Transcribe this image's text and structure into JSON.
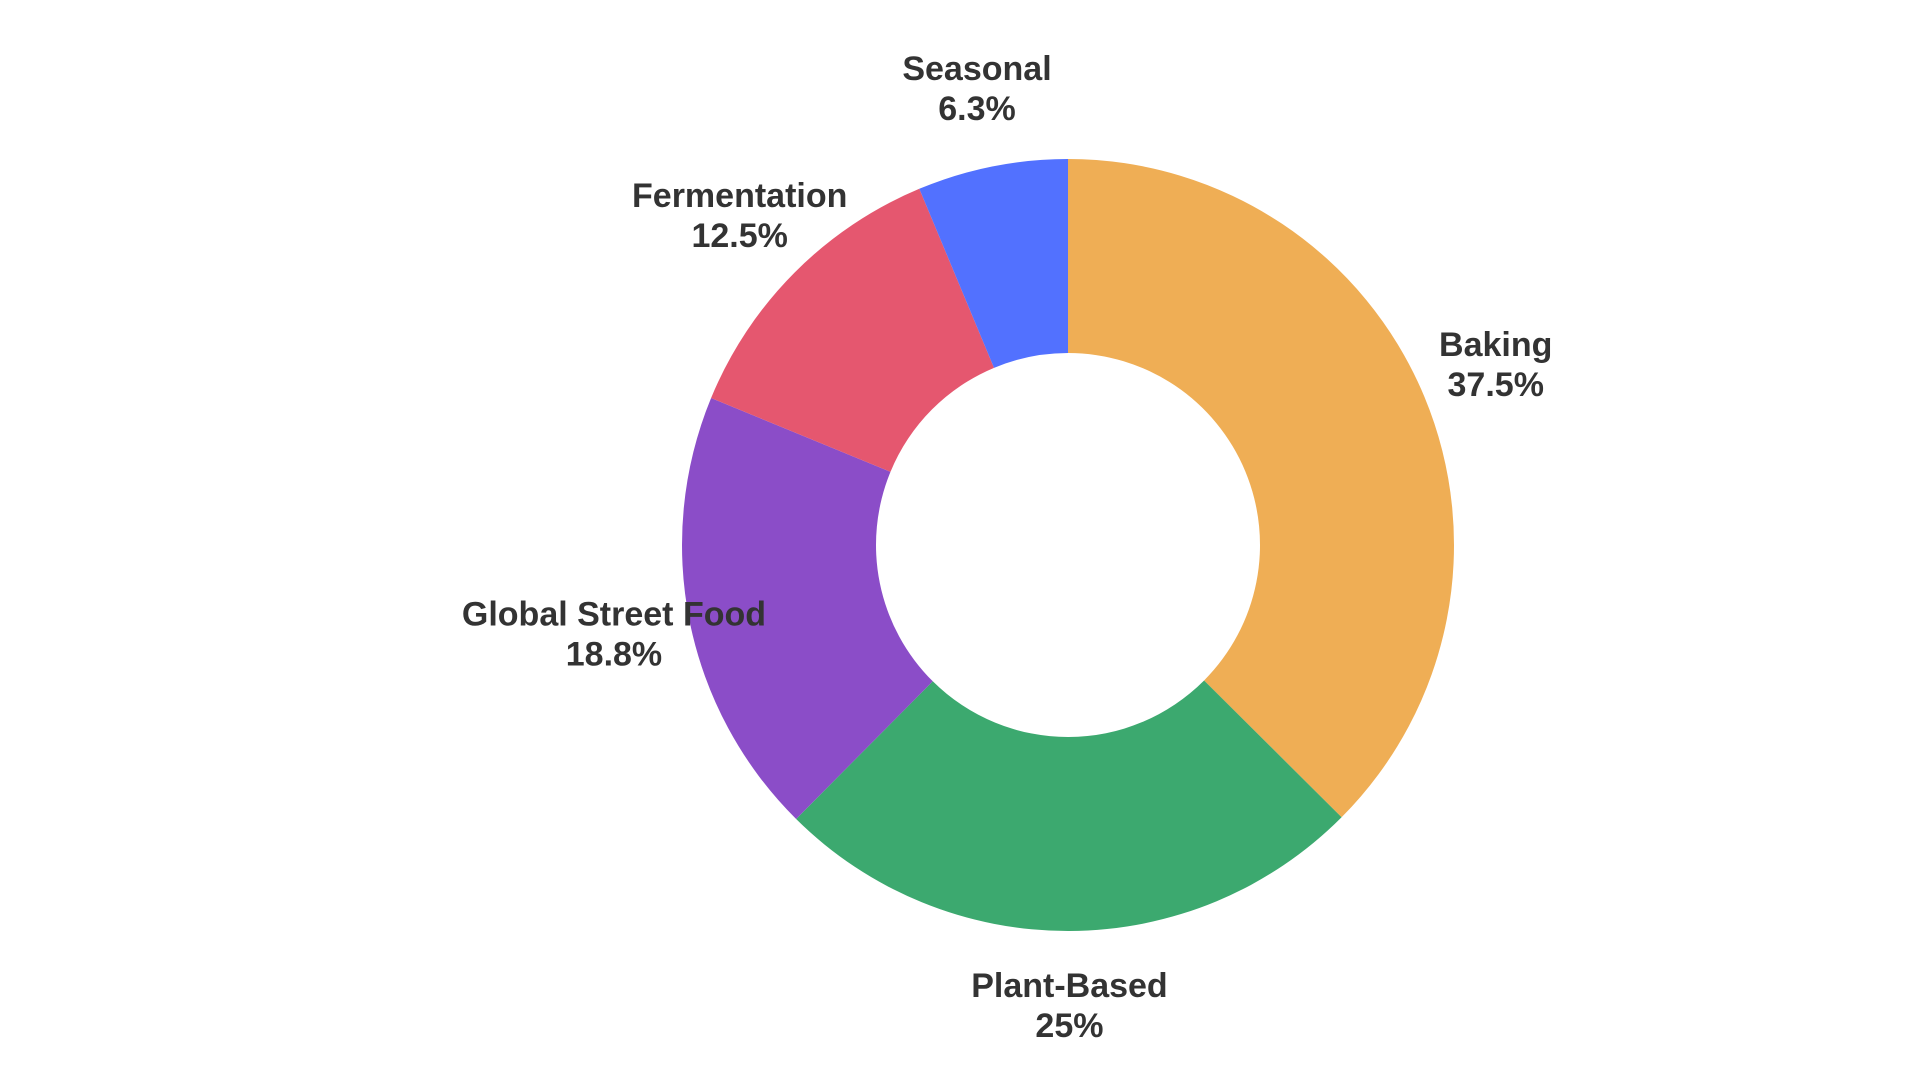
{
  "chart_data": {
    "type": "donut",
    "categories": [
      "Baking",
      "Plant-Based",
      "Global Street Food",
      "Fermentation",
      "Seasonal"
    ],
    "values": [
      37.5,
      25,
      18.8,
      12.5,
      6.3
    ],
    "value_labels": [
      "37.5%",
      "25%",
      "18.8%",
      "12.5%",
      "6.3%"
    ],
    "colors": [
      "#efae55",
      "#3ca96f",
      "#8b4dc8",
      "#e5576f",
      "#5271ff"
    ]
  }
}
